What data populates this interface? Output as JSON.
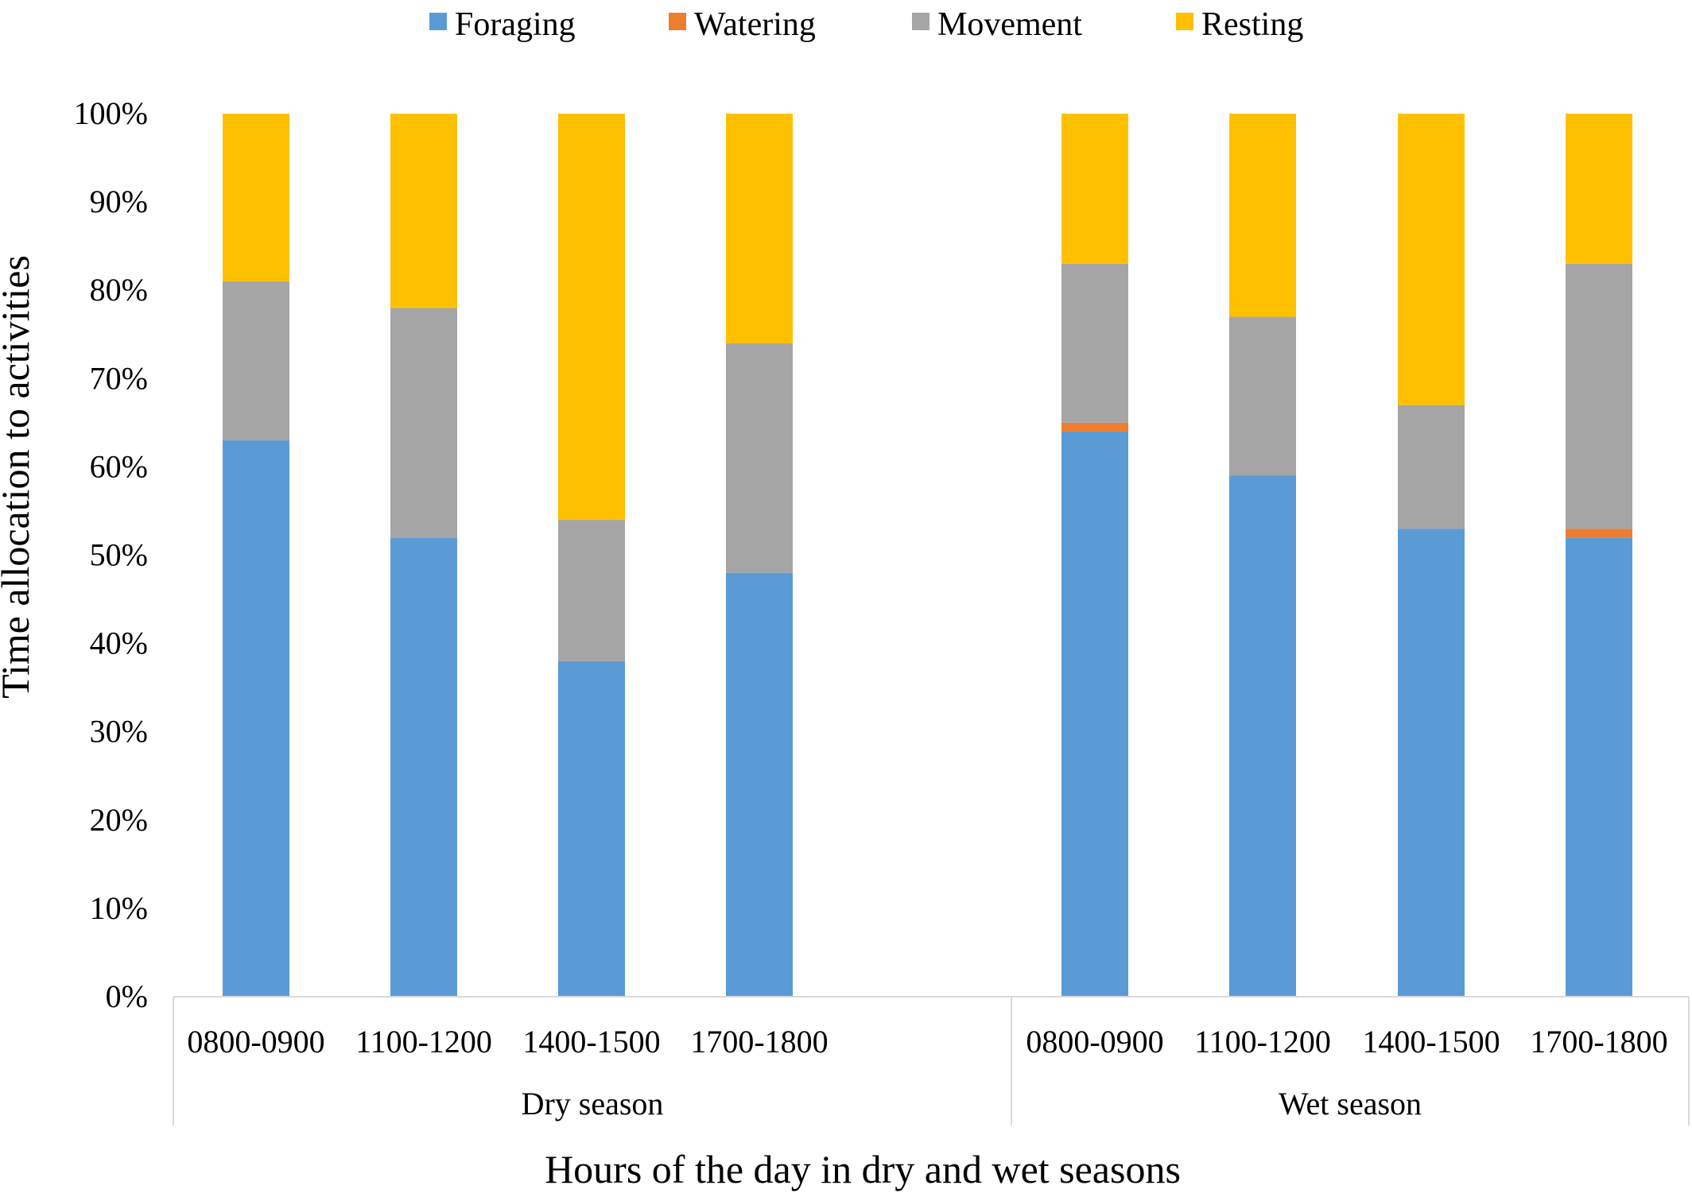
{
  "chart_data": {
    "type": "bar",
    "stacked": true,
    "normalized": true,
    "xlabel": "Hours of the day in dry and wet seasons",
    "ylabel": "Time allocation to activities",
    "ylim": [
      0,
      100
    ],
    "y_ticks": [
      "0%",
      "10%",
      "20%",
      "30%",
      "40%",
      "50%",
      "60%",
      "70%",
      "80%",
      "90%",
      "100%"
    ],
    "legend_position": "top",
    "grid": false,
    "groups": [
      {
        "name": "Dry season",
        "categories": [
          "0800-0900",
          "1100-1200",
          "1400-1500",
          "1700-1800"
        ]
      },
      {
        "name": "Wet season",
        "categories": [
          "0800-0900",
          "1100-1200",
          "1400-1500",
          "1700-1800"
        ]
      }
    ],
    "series": [
      {
        "name": "Foraging",
        "color": "#5b9bd5",
        "values": [
          63,
          52,
          38,
          48,
          64,
          59,
          53,
          52
        ]
      },
      {
        "name": "Watering",
        "color": "#ed7d31",
        "values": [
          0,
          0,
          0,
          0,
          1,
          0,
          0,
          1
        ]
      },
      {
        "name": "Movement",
        "color": "#a5a5a5",
        "values": [
          18,
          26,
          16,
          26,
          18,
          18,
          14,
          30
        ]
      },
      {
        "name": "Resting",
        "color": "#ffc000",
        "values": [
          19,
          22,
          46,
          26,
          17,
          23,
          33,
          17
        ]
      }
    ]
  }
}
